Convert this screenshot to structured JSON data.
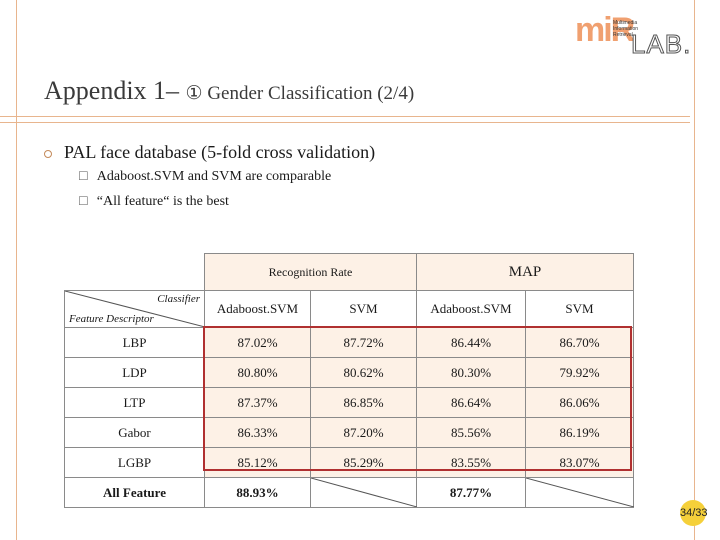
{
  "logo": {
    "mi": "miR",
    "lines": [
      "Multimedia",
      "Information",
      "Retrieval"
    ],
    "lab": "LAB."
  },
  "slide": {
    "title_main": "Appendix 1– ",
    "title_sub": "① Gender Classification (2/4)",
    "bullet": "PAL face database (5-fold cross validation)",
    "sub_bullets": [
      "Adaboost.SVM and SVM are comparable",
      "“All feature“ is the best"
    ],
    "page_number": "34/33"
  },
  "table": {
    "group_headers": {
      "recognition_rate": "Recognition Rate",
      "map": "MAP"
    },
    "corner": {
      "classifier": "Classifier",
      "feature_descriptor": "Feature Descriptor"
    },
    "columns": [
      "Adaboost.SVM",
      "SVM",
      "Adaboost.SVM",
      "SVM"
    ],
    "rows": [
      {
        "label": "LBP",
        "values": [
          "87.02%",
          "87.72%",
          "86.44%",
          "86.70%"
        ]
      },
      {
        "label": "LDP",
        "values": [
          "80.80%",
          "80.62%",
          "80.30%",
          "79.92%"
        ]
      },
      {
        "label": "LTP",
        "values": [
          "87.37%",
          "86.85%",
          "86.64%",
          "86.06%"
        ]
      },
      {
        "label": "Gabor",
        "values": [
          "86.33%",
          "87.20%",
          "85.56%",
          "86.19%"
        ]
      },
      {
        "label": "LGBP",
        "values": [
          "85.12%",
          "85.29%",
          "83.55%",
          "83.07%"
        ]
      }
    ],
    "all_feature": {
      "label": "All Feature",
      "rr_adaboost": "88.93%",
      "map_adaboost": "87.77%"
    }
  },
  "colors": {
    "accent": "#e8b58e",
    "highlight_box": "#b03030",
    "cell_fill": "#fdf1e6",
    "page_badge": "#f5d03a"
  }
}
